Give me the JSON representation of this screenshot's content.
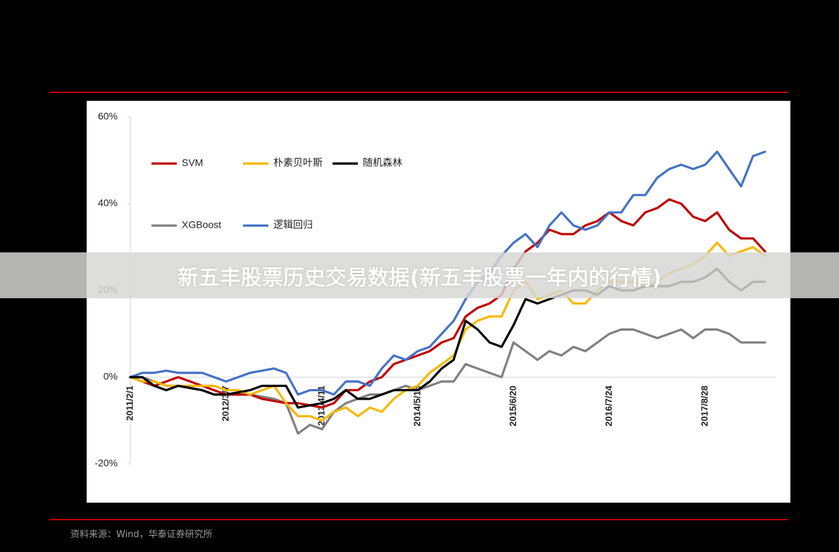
{
  "banner_title": "新五丰股票历史交易数据(新五丰股票一年内的行情)",
  "source": "资料来源：Wind，华泰证券研究所",
  "chart_data": {
    "type": "line",
    "categories": [
      "2011/2/1",
      null,
      null,
      null,
      null,
      null,
      null,
      null,
      "2012/3/7",
      null,
      null,
      null,
      null,
      null,
      null,
      null,
      "2013/4/11",
      null,
      null,
      null,
      null,
      null,
      null,
      null,
      "2014/5/16",
      null,
      null,
      null,
      null,
      null,
      null,
      null,
      "2015/6/20",
      null,
      null,
      null,
      null,
      null,
      null,
      null,
      "2016/7/24",
      null,
      null,
      null,
      null,
      null,
      null,
      null,
      "2017/8/28",
      null,
      null,
      null,
      null,
      null
    ],
    "ylim": [
      -20,
      60
    ],
    "yticks": [
      {
        "value": -20,
        "label": "-20%"
      },
      {
        "value": 0,
        "label": "0%"
      },
      {
        "value": 20,
        "label": "20%"
      },
      {
        "value": 40,
        "label": "40%"
      },
      {
        "value": 60,
        "label": "60%"
      }
    ],
    "series": [
      {
        "name": "SVM",
        "color": "#c00000",
        "values": [
          0,
          -1,
          -2,
          -1,
          0,
          -1,
          -2,
          -3,
          -4,
          -4,
          -4,
          -5,
          -5.5,
          -6,
          -6,
          -6.5,
          -7,
          -6,
          -3,
          -3,
          -1,
          0,
          3,
          4,
          5,
          6,
          8,
          9,
          14,
          16,
          17,
          19,
          25,
          29,
          31,
          34,
          33,
          33,
          35,
          36,
          38,
          36,
          35,
          38,
          39,
          41,
          40,
          37,
          36,
          38,
          34,
          32,
          32,
          29
        ]
      },
      {
        "name": "朴素贝叶斯",
        "color": "#f5b800",
        "values": [
          0,
          -1,
          -1,
          -2,
          -2,
          -2,
          -2,
          -2,
          -3,
          -3,
          -4,
          -3,
          -2,
          -6,
          -9,
          -9,
          -10,
          -8,
          -7,
          -9,
          -7,
          -8,
          -5,
          -3,
          -2,
          1,
          3,
          5,
          11,
          13,
          14,
          14,
          20,
          22,
          18,
          19,
          20,
          17,
          17,
          20,
          22,
          22,
          22,
          21,
          22,
          24,
          25,
          26,
          28,
          31,
          28,
          29,
          30,
          28
        ]
      },
      {
        "name": "随机森林",
        "color": "#000000",
        "values": [
          0,
          0,
          -2,
          -3,
          -2,
          -2.5,
          -3,
          -4,
          -4,
          -3.5,
          -3,
          -2,
          -2,
          -2,
          -7,
          -6.5,
          -6,
          -5,
          -3,
          -5,
          -5,
          -4,
          -3,
          -3,
          -3,
          -1,
          2,
          4,
          13,
          11,
          8,
          7,
          12,
          18,
          17,
          18,
          19,
          20,
          20,
          19,
          21,
          20,
          20,
          21,
          21,
          21,
          22,
          22,
          23,
          25,
          22,
          20,
          22,
          22
        ]
      },
      {
        "name": "XGBoost",
        "color": "#808080",
        "values": [
          0,
          0,
          -1,
          -2,
          -2,
          -2.5,
          -3,
          -4,
          -4,
          -4,
          -4,
          -4.5,
          -5,
          -6,
          -13,
          -11,
          -12,
          -8,
          -6,
          -5,
          -4,
          -4,
          -3,
          -2,
          -3,
          -2,
          -1,
          -1,
          3,
          2,
          1,
          0,
          8,
          6,
          4,
          6,
          5,
          7,
          6,
          8,
          10,
          11,
          11,
          10,
          9,
          10,
          11,
          9,
          11,
          11,
          10,
          8,
          8,
          8
        ]
      },
      {
        "name": "逻辑回归",
        "color": "#4472c4",
        "values": [
          0,
          1,
          1,
          1.5,
          1,
          1,
          1,
          0,
          -1,
          0,
          1,
          1.5,
          2,
          1,
          -4,
          -3,
          -3,
          -4,
          -1,
          -1,
          -2,
          2,
          5,
          4,
          6,
          7,
          10,
          13,
          18,
          22,
          24,
          28,
          31,
          33,
          30,
          35,
          38,
          35,
          34,
          35,
          38,
          38,
          42,
          42,
          46,
          48,
          49,
          48,
          49,
          52,
          48,
          44,
          51,
          52
        ]
      }
    ]
  }
}
